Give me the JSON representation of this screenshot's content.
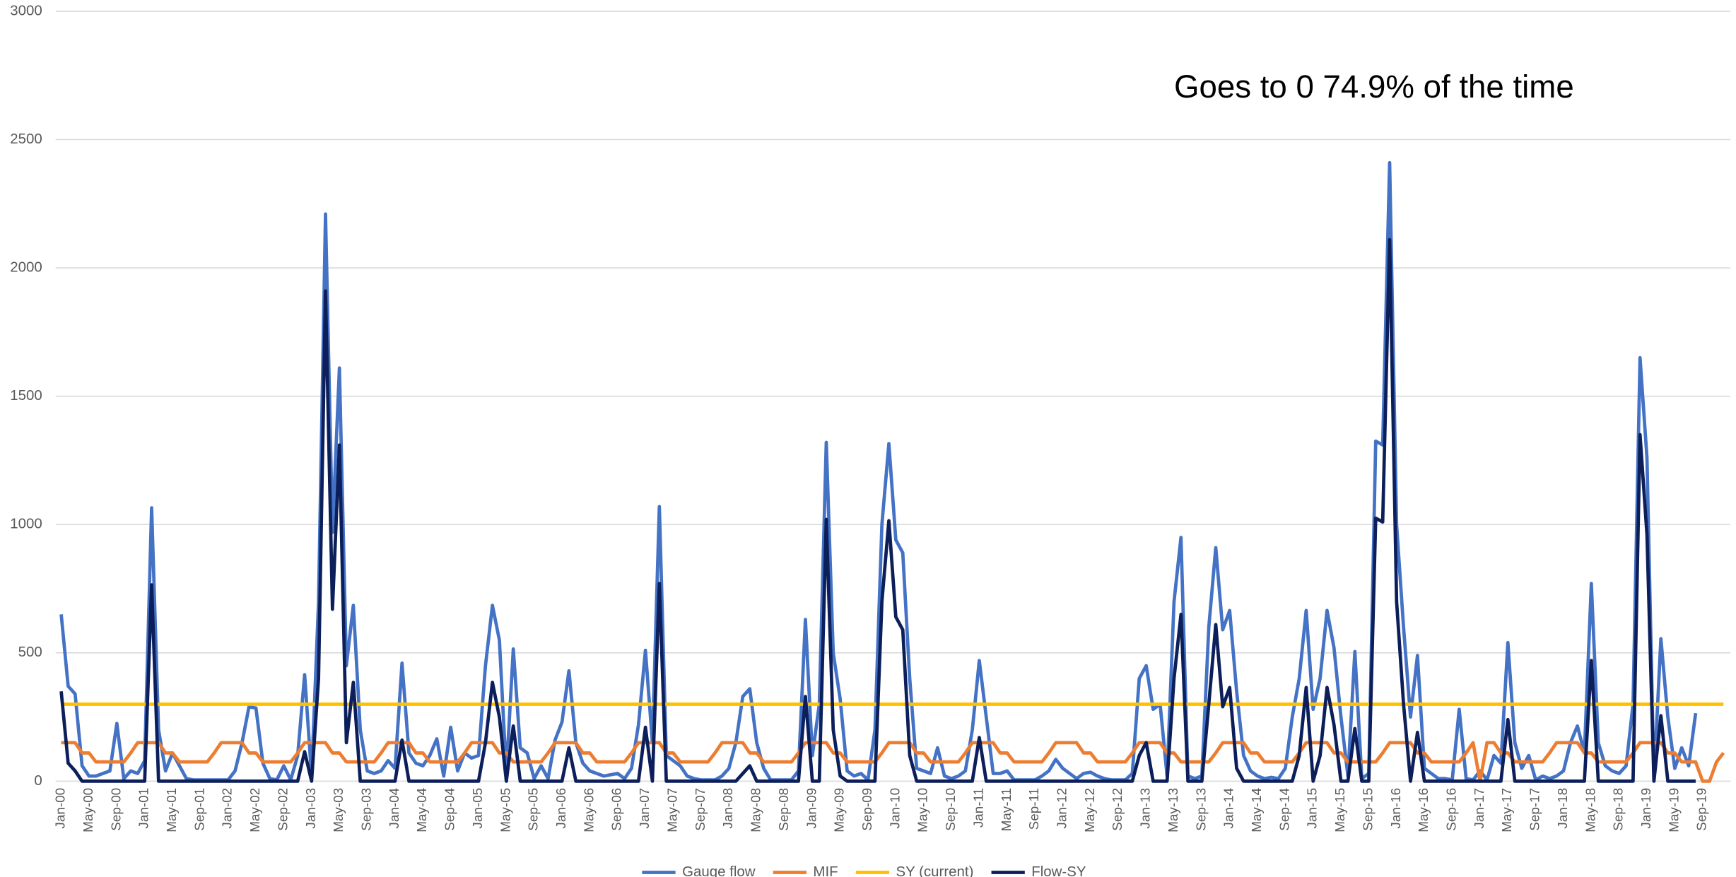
{
  "chart_data": {
    "type": "line",
    "annotation": "Goes to 0 74.9% of the time",
    "categories": [
      "Jan-00",
      null,
      null,
      null,
      "May-00",
      null,
      null,
      null,
      "Sep-00",
      null,
      null,
      null,
      "Jan-01",
      null,
      null,
      null,
      "May-01",
      null,
      null,
      null,
      "Sep-01",
      null,
      null,
      null,
      "Jan-02",
      null,
      null,
      null,
      "May-02",
      null,
      null,
      null,
      "Sep-02",
      null,
      null,
      null,
      "Jan-03",
      null,
      null,
      null,
      "May-03",
      null,
      null,
      null,
      "Sep-03",
      null,
      null,
      null,
      "Jan-04",
      null,
      null,
      null,
      "May-04",
      null,
      null,
      null,
      "Sep-04",
      null,
      null,
      null,
      "Jan-05",
      null,
      null,
      null,
      "May-05",
      null,
      null,
      null,
      "Sep-05",
      null,
      null,
      null,
      "Jan-06",
      null,
      null,
      null,
      "May-06",
      null,
      null,
      null,
      "Sep-06",
      null,
      null,
      null,
      "Jan-07",
      null,
      null,
      null,
      "May-07",
      null,
      null,
      null,
      "Sep-07",
      null,
      null,
      null,
      "Jan-08",
      null,
      null,
      null,
      "May-08",
      null,
      null,
      null,
      "Sep-08",
      null,
      null,
      null,
      "Jan-09",
      null,
      null,
      null,
      "May-09",
      null,
      null,
      null,
      "Sep-09",
      null,
      null,
      null,
      "Jan-10",
      null,
      null,
      null,
      "May-10",
      null,
      null,
      null,
      "Sep-10",
      null,
      null,
      null,
      "Jan-11",
      null,
      null,
      null,
      "May-11",
      null,
      null,
      null,
      "Sep-11",
      null,
      null,
      null,
      "Jan-12",
      null,
      null,
      null,
      "May-12",
      null,
      null,
      null,
      "Sep-12",
      null,
      null,
      null,
      "Jan-13",
      null,
      null,
      null,
      "May-13",
      null,
      null,
      null,
      "Sep-13",
      null,
      null,
      null,
      "Jan-14",
      null,
      null,
      null,
      "May-14",
      null,
      null,
      null,
      "Sep-14",
      null,
      null,
      null,
      "Jan-15",
      null,
      null,
      null,
      "May-15",
      null,
      null,
      null,
      "Sep-15",
      null,
      null,
      null,
      "Jan-16",
      null,
      null,
      null,
      "May-16",
      null,
      null,
      null,
      "Sep-16",
      null,
      null,
      null,
      "Jan-17",
      null,
      null,
      null,
      "May-17",
      null,
      null,
      null,
      "Sep-17",
      null,
      null,
      null,
      "Jan-18",
      null,
      null,
      null,
      "May-18",
      null,
      null,
      null,
      "Sep-18",
      null,
      null,
      null,
      "Jan-19",
      null,
      null,
      null,
      "May-19",
      null,
      null,
      null,
      "Sep-19",
      null,
      null,
      null
    ],
    "series": [
      {
        "name": "Gauge flow",
        "color": "#4472c4",
        "values": [
          650,
          370,
          340,
          60,
          20,
          20,
          30,
          40,
          225,
          10,
          40,
          30,
          80,
          1065,
          200,
          40,
          110,
          60,
          10,
          5,
          5,
          5,
          5,
          5,
          5,
          40,
          150,
          290,
          285,
          70,
          10,
          5,
          60,
          5,
          100,
          415,
          20,
          700,
          2210,
          970,
          1610,
          450,
          685,
          200,
          40,
          30,
          40,
          80,
          50,
          460,
          110,
          70,
          60,
          100,
          165,
          20,
          210,
          40,
          110,
          90,
          100,
          450,
          685,
          550,
          30,
          515,
          130,
          110,
          10,
          60,
          10,
          160,
          230,
          430,
          150,
          70,
          40,
          30,
          20,
          25,
          30,
          10,
          50,
          220,
          510,
          150,
          1070,
          100,
          80,
          60,
          20,
          10,
          5,
          5,
          5,
          20,
          50,
          150,
          330,
          360,
          150,
          50,
          5,
          5,
          5,
          5,
          40,
          630,
          100,
          300,
          1320,
          500,
          320,
          40,
          20,
          30,
          5,
          200,
          1000,
          1315,
          940,
          890,
          400,
          50,
          40,
          30,
          130,
          20,
          10,
          20,
          40,
          200,
          470,
          250,
          30,
          30,
          40,
          5,
          5,
          5,
          5,
          20,
          40,
          85,
          50,
          30,
          10,
          30,
          35,
          20,
          10,
          5,
          5,
          5,
          30,
          400,
          450,
          280,
          300,
          20,
          700,
          950,
          20,
          10,
          20,
          600,
          910,
          590,
          665,
          350,
          100,
          40,
          20,
          10,
          15,
          10,
          50,
          250,
          400,
          665,
          280,
          400,
          665,
          520,
          250,
          20,
          505,
          10,
          30,
          1325,
          1310,
          2410,
          1000,
          600,
          250,
          490,
          50,
          30,
          10,
          10,
          5,
          280,
          10,
          5,
          40,
          5,
          100,
          70,
          540,
          150,
          50,
          100,
          5,
          20,
          10,
          20,
          40,
          150,
          215,
          110,
          770,
          150,
          60,
          40,
          30,
          60,
          300,
          1650,
          1260,
          5,
          555,
          250,
          50,
          130,
          60,
          265,
          null,
          null,
          null,
          null
        ]
      },
      {
        "name": "MIF",
        "color": "#ed7d31",
        "values": [
          150,
          150,
          150,
          110,
          110,
          75,
          75,
          75,
          75,
          75,
          110,
          150,
          150,
          150,
          150,
          110,
          110,
          75,
          75,
          75,
          75,
          75,
          110,
          150,
          150,
          150,
          150,
          110,
          110,
          75,
          75,
          75,
          75,
          75,
          110,
          150,
          150,
          150,
          150,
          110,
          110,
          75,
          75,
          75,
          75,
          75,
          110,
          150,
          150,
          150,
          150,
          110,
          110,
          75,
          75,
          75,
          75,
          75,
          110,
          150,
          150,
          150,
          150,
          110,
          110,
          75,
          75,
          75,
          75,
          75,
          110,
          150,
          150,
          150,
          150,
          110,
          110,
          75,
          75,
          75,
          75,
          75,
          110,
          150,
          150,
          150,
          150,
          110,
          110,
          75,
          75,
          75,
          75,
          75,
          110,
          150,
          150,
          150,
          150,
          110,
          110,
          75,
          75,
          75,
          75,
          75,
          110,
          150,
          150,
          150,
          150,
          110,
          110,
          75,
          75,
          75,
          75,
          75,
          110,
          150,
          150,
          150,
          150,
          110,
          110,
          75,
          75,
          75,
          75,
          75,
          110,
          150,
          150,
          150,
          150,
          110,
          110,
          75,
          75,
          75,
          75,
          75,
          110,
          150,
          150,
          150,
          150,
          110,
          110,
          75,
          75,
          75,
          75,
          75,
          110,
          150,
          150,
          150,
          150,
          110,
          110,
          75,
          75,
          75,
          75,
          75,
          110,
          150,
          150,
          150,
          150,
          110,
          110,
          75,
          75,
          75,
          75,
          75,
          110,
          150,
          150,
          150,
          150,
          110,
          110,
          75,
          75,
          75,
          75,
          75,
          110,
          150,
          150,
          150,
          150,
          110,
          110,
          75,
          75,
          75,
          75,
          75,
          110,
          150,
          0,
          150,
          150,
          110,
          110,
          75,
          75,
          75,
          75,
          75,
          110,
          150,
          150,
          150,
          150,
          110,
          110,
          75,
          75,
          75,
          75,
          75,
          110,
          150,
          150,
          150,
          150,
          110,
          110,
          75,
          75,
          75,
          0,
          0,
          75,
          110
        ]
      },
      {
        "name": "SY (current)",
        "color": "#ffc000",
        "values": [
          300,
          300,
          300,
          300,
          300,
          300,
          300,
          300,
          300,
          300,
          300,
          300,
          300,
          300,
          300,
          300,
          300,
          300,
          300,
          300,
          300,
          300,
          300,
          300,
          300,
          300,
          300,
          300,
          300,
          300,
          300,
          300,
          300,
          300,
          300,
          300,
          300,
          300,
          300,
          300,
          300,
          300,
          300,
          300,
          300,
          300,
          300,
          300,
          300,
          300,
          300,
          300,
          300,
          300,
          300,
          300,
          300,
          300,
          300,
          300,
          300,
          300,
          300,
          300,
          300,
          300,
          300,
          300,
          300,
          300,
          300,
          300,
          300,
          300,
          300,
          300,
          300,
          300,
          300,
          300,
          300,
          300,
          300,
          300,
          300,
          300,
          300,
          300,
          300,
          300,
          300,
          300,
          300,
          300,
          300,
          300,
          300,
          300,
          300,
          300,
          300,
          300,
          300,
          300,
          300,
          300,
          300,
          300,
          300,
          300,
          300,
          300,
          300,
          300,
          300,
          300,
          300,
          300,
          300,
          300,
          300,
          300,
          300,
          300,
          300,
          300,
          300,
          300,
          300,
          300,
          300,
          300,
          300,
          300,
          300,
          300,
          300,
          300,
          300,
          300,
          300,
          300,
          300,
          300,
          300,
          300,
          300,
          300,
          300,
          300,
          300,
          300,
          300,
          300,
          300,
          300,
          300,
          300,
          300,
          300,
          300,
          300,
          300,
          300,
          300,
          300,
          300,
          300,
          300,
          300,
          300,
          300,
          300,
          300,
          300,
          300,
          300,
          300,
          300,
          300,
          300,
          300,
          300,
          300,
          300,
          300,
          300,
          300,
          300,
          300,
          300,
          300,
          300,
          300,
          300,
          300,
          300,
          300,
          300,
          300,
          300,
          300,
          300,
          300,
          300,
          300,
          300,
          300,
          300,
          300,
          300,
          300,
          300,
          300,
          300,
          300,
          300,
          300,
          300,
          300,
          300,
          300,
          300,
          300,
          300,
          300,
          300,
          300,
          300,
          300,
          300,
          300,
          300,
          300,
          300,
          300,
          300,
          300,
          300,
          300
        ]
      },
      {
        "name": "Flow-SY",
        "color": "#0c1f5a",
        "values": [
          350,
          70,
          40,
          0,
          0,
          0,
          0,
          0,
          0,
          0,
          0,
          0,
          0,
          765,
          0,
          0,
          0,
          0,
          0,
          0,
          0,
          0,
          0,
          0,
          0,
          0,
          0,
          0,
          0,
          0,
          0,
          0,
          0,
          0,
          0,
          115,
          0,
          400,
          1910,
          670,
          1310,
          150,
          385,
          0,
          0,
          0,
          0,
          0,
          0,
          160,
          0,
          0,
          0,
          0,
          0,
          0,
          0,
          0,
          0,
          0,
          0,
          150,
          385,
          250,
          0,
          215,
          0,
          0,
          0,
          0,
          0,
          0,
          0,
          130,
          0,
          0,
          0,
          0,
          0,
          0,
          0,
          0,
          0,
          0,
          210,
          0,
          770,
          0,
          0,
          0,
          0,
          0,
          0,
          0,
          0,
          0,
          0,
          0,
          30,
          60,
          0,
          0,
          0,
          0,
          0,
          0,
          0,
          330,
          0,
          0,
          1020,
          200,
          20,
          0,
          0,
          0,
          0,
          0,
          700,
          1015,
          640,
          590,
          100,
          0,
          0,
          0,
          0,
          0,
          0,
          0,
          0,
          0,
          170,
          0,
          0,
          0,
          0,
          0,
          0,
          0,
          0,
          0,
          0,
          0,
          0,
          0,
          0,
          0,
          0,
          0,
          0,
          0,
          0,
          0,
          0,
          100,
          150,
          0,
          0,
          0,
          400,
          650,
          0,
          0,
          0,
          300,
          610,
          290,
          365,
          50,
          0,
          0,
          0,
          0,
          0,
          0,
          0,
          0,
          100,
          365,
          0,
          100,
          365,
          220,
          0,
          0,
          205,
          0,
          0,
          1025,
          1010,
          2110,
          700,
          300,
          0,
          190,
          0,
          0,
          0,
          0,
          0,
          0,
          0,
          0,
          0,
          0,
          0,
          0,
          240,
          0,
          0,
          0,
          0,
          0,
          0,
          0,
          0,
          0,
          0,
          0,
          470,
          0,
          0,
          0,
          0,
          0,
          0,
          1350,
          960,
          0,
          255,
          0,
          0,
          0,
          0,
          0,
          null,
          null,
          null,
          null
        ]
      }
    ],
    "ylim": [
      0,
      3000
    ],
    "yticks": [
      0,
      500,
      1000,
      1500,
      2000,
      2500,
      3000
    ],
    "grid": true,
    "legend": "bottom"
  }
}
